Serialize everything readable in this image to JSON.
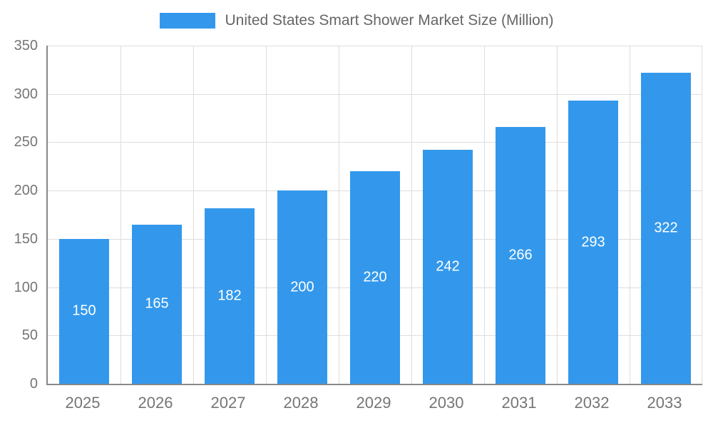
{
  "chart_data": {
    "type": "bar",
    "title": "United States Smart Shower Market Size (Million)",
    "categories": [
      "2025",
      "2026",
      "2027",
      "2028",
      "2029",
      "2030",
      "2031",
      "2032",
      "2033"
    ],
    "values": [
      150,
      165,
      182,
      200,
      220,
      242,
      266,
      293,
      322
    ],
    "series_name": "United States Smart Shower Market Size (Million)",
    "xlabel": "",
    "ylabel": "",
    "ylim": [
      0,
      350
    ],
    "ytick_interval": 50,
    "grid": true,
    "legend_position": "top",
    "colors": {
      "bar": "#3398ec",
      "bar_value_label": "#ffffff",
      "axis_line": "#888888",
      "grid_line": "#dddddd",
      "tick_label": "#757575",
      "title_text": "#666666",
      "background": "#ffffff"
    }
  }
}
